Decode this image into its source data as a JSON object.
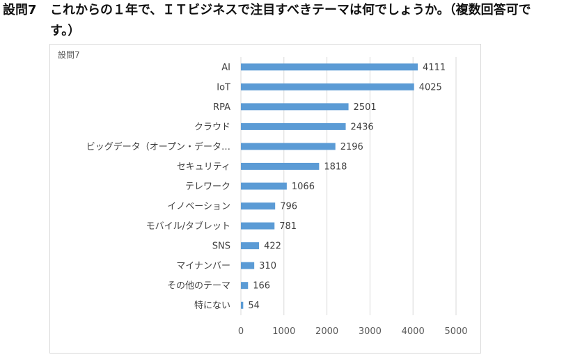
{
  "question": {
    "label": "設問7",
    "text_line1": "これからの１年で、ＩＴビジネスで注目すべきテーマは何でしょうか。（複数回答可で",
    "text_line2": "す。）"
  },
  "chart_data": {
    "type": "bar",
    "orientation": "horizontal",
    "title": "設問7",
    "categories": [
      "AI",
      "IoT",
      "RPA",
      "クラウド",
      "ビッグデータ（オープン・データ…",
      "セキュリティ",
      "テレワーク",
      "イノベーション",
      "モバイル/タブレット",
      "SNS",
      "マイナンバー",
      "その他のテーマ",
      "特にない"
    ],
    "values": [
      4111,
      4025,
      2501,
      2436,
      2196,
      1818,
      1066,
      796,
      781,
      422,
      310,
      166,
      54
    ],
    "xlim": [
      0,
      5000
    ],
    "xticks": [
      0,
      1000,
      2000,
      3000,
      4000,
      5000
    ],
    "grid": true,
    "data_labels": true,
    "bar_color": "#5b9bd5"
  },
  "colors": {
    "bar": "#5b9bd5",
    "grid": "#d9d9d9",
    "axis_text": "#595959",
    "label_text": "#404040"
  }
}
